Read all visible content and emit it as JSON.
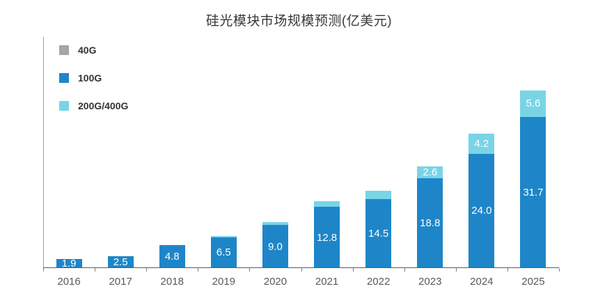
{
  "chart_data": {
    "type": "bar",
    "stacked": true,
    "title": "硅光模块市场规模预测(亿美元)",
    "categories": [
      "2016",
      "2017",
      "2018",
      "2019",
      "2020",
      "2021",
      "2022",
      "2023",
      "2024",
      "2025"
    ],
    "series": [
      {
        "name": "40G",
        "color": "#a6a6a6",
        "values": [
          0,
          0,
          0,
          0,
          0,
          0,
          0,
          0,
          0,
          0
        ],
        "labels": [
          "",
          "",
          "",
          "",
          "",
          "",
          "",
          "",
          "",
          ""
        ]
      },
      {
        "name": "100G",
        "color": "#1e86c8",
        "values": [
          1.9,
          2.5,
          4.8,
          6.5,
          9.0,
          12.8,
          14.5,
          18.8,
          24.0,
          31.7
        ],
        "labels": [
          "1.9",
          "2.5",
          "4.8",
          "6.5",
          "9.0",
          "12.8",
          "14.5",
          "18.8",
          "24.0",
          "31.7"
        ]
      },
      {
        "name": "200G/400G",
        "color": "#79d4e6",
        "values": [
          0,
          0,
          0,
          0.2,
          0.7,
          1.3,
          1.7,
          2.6,
          4.2,
          5.6
        ],
        "labels": [
          "",
          "",
          "",
          "",
          "",
          "",
          "",
          "2.6",
          "4.2",
          "5.6"
        ]
      }
    ],
    "ylim": [
      0,
      48.5
    ],
    "grid": false,
    "legend_position": "top-left-inside",
    "value_label_color": "#ffffff",
    "axis_label_color": "#595959"
  }
}
